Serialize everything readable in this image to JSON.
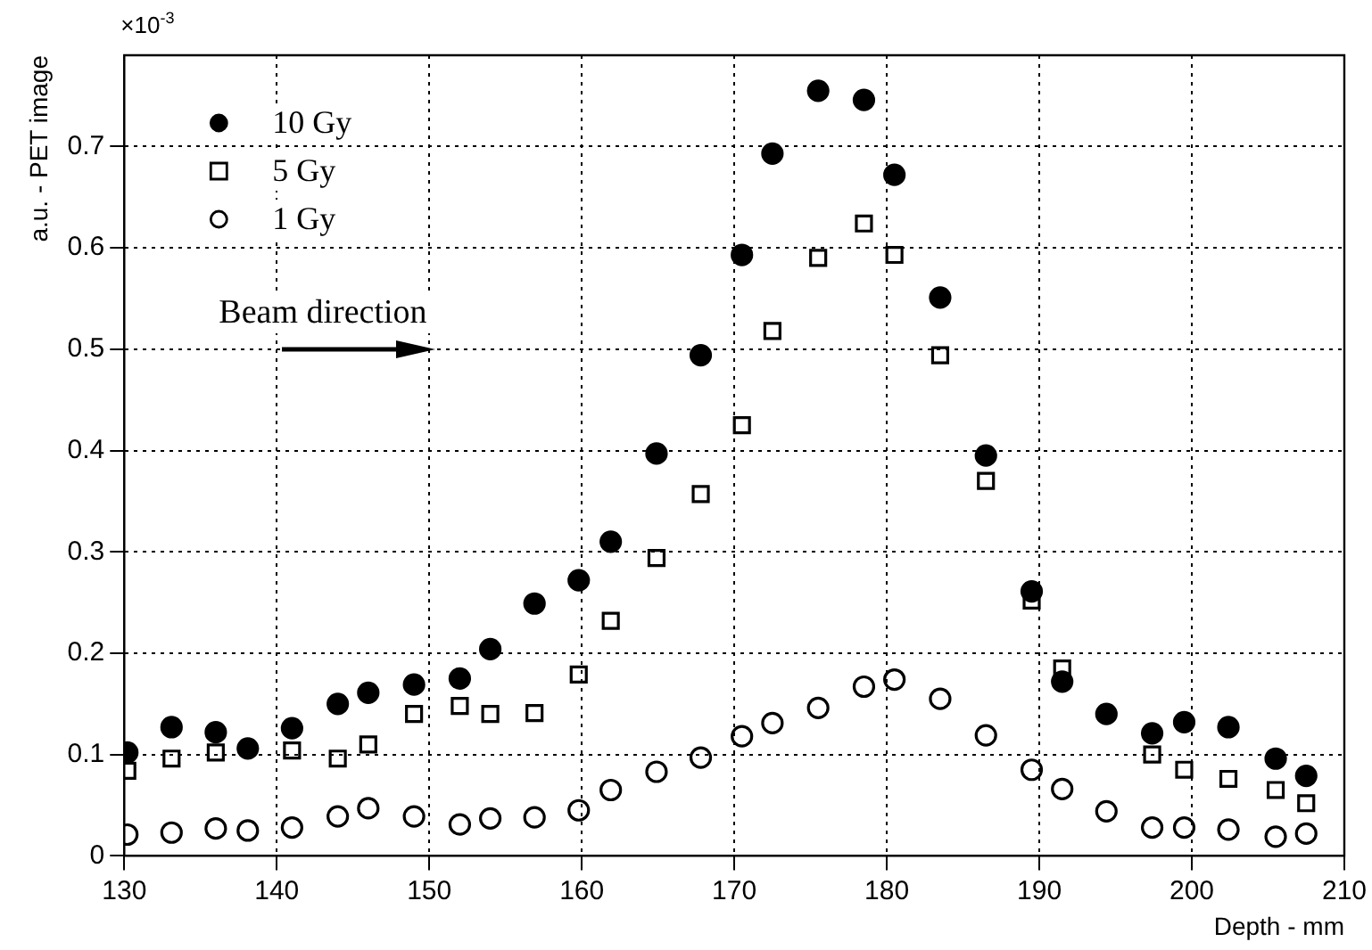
{
  "chart_data": {
    "type": "scatter",
    "xlabel": "Depth - mm",
    "ylabel": "a.u. - PET image",
    "annotations": [
      "×10$^{-3}$",
      "Beam direction"
    ],
    "x": [
      130.2,
      133.1,
      136.0,
      138.1,
      141.0,
      144.0,
      146.0,
      149.0,
      152.0,
      154.0,
      156.9,
      159.8,
      161.9,
      164.9,
      167.8,
      170.5,
      172.5,
      175.5,
      178.5,
      180.5,
      183.5,
      186.5,
      189.5,
      191.5,
      194.4,
      197.4,
      199.5,
      202.4,
      205.5,
      207.5
    ],
    "series": [
      {
        "name": "10 Gy",
        "color": "#000000",
        "marker": "circle",
        "values": [
          0.102,
          0.127,
          0.122,
          0.106,
          0.126,
          0.15,
          0.161,
          0.169,
          0.175,
          0.204,
          0.249,
          0.272,
          0.31,
          0.397,
          0.494,
          0.593,
          0.693,
          0.755,
          0.746,
          0.672,
          0.551,
          0.395,
          0.261,
          0.172,
          0.14,
          0.121,
          0.132,
          0.127,
          0.096,
          0.079
        ]
      },
      {
        "name": "5 Gy",
        "color": "#000000",
        "marker": "square",
        "values": [
          0.084,
          0.096,
          0.102,
          null,
          0.104,
          0.096,
          0.11,
          0.14,
          0.148,
          0.14,
          0.141,
          0.179,
          0.232,
          0.294,
          0.357,
          0.425,
          0.518,
          0.59,
          0.624,
          0.593,
          0.494,
          0.37,
          0.252,
          0.185,
          null,
          0.1,
          0.085,
          0.076,
          0.065,
          0.052
        ]
      },
      {
        "name": "1 Gy",
        "color": "#000000",
        "marker": "circle",
        "values": [
          0.021,
          0.023,
          0.027,
          0.025,
          0.028,
          0.039,
          0.047,
          0.039,
          0.031,
          0.037,
          0.038,
          0.045,
          0.065,
          0.083,
          0.097,
          0.118,
          0.131,
          0.146,
          0.167,
          0.174,
          0.155,
          0.119,
          0.085,
          0.066,
          0.044,
          0.028,
          0.028,
          0.026,
          0.019,
          0.022
        ]
      }
    ],
    "xlim": [
      130,
      210
    ],
    "xticks": [
      130,
      140,
      150,
      160,
      170,
      180,
      190,
      200,
      210
    ],
    "ylim": [
      0,
      0.79
    ],
    "yticks": [
      0,
      0.1,
      0.2,
      0.3,
      0.4,
      0.5,
      0.6,
      0.7
    ],
    "grid": true,
    "legend": "top left"
  }
}
